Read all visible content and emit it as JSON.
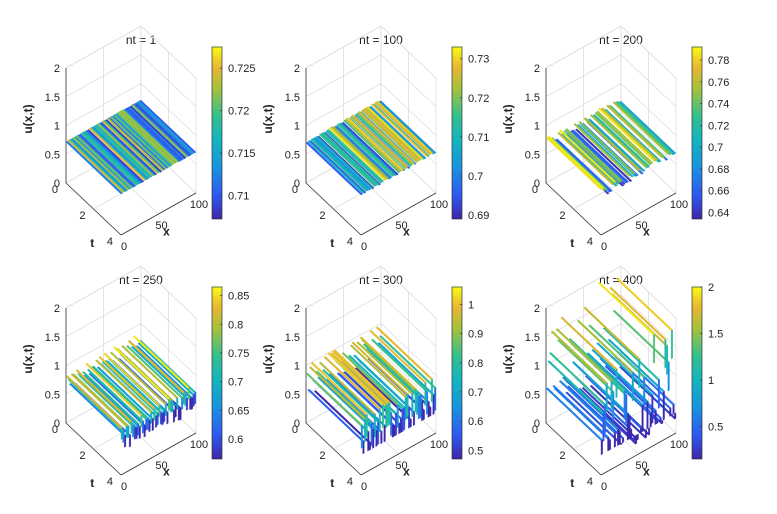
{
  "chart_data": {
    "type": "surface-grid",
    "zlabel": "u(x,t)",
    "xlabel": "x",
    "ylabel": "t",
    "xticks": [
      "0",
      "50",
      "100"
    ],
    "yticks": [
      "0",
      "2",
      "4"
    ],
    "zticks": [
      "0",
      "0.5",
      "1",
      "1.5",
      "2"
    ],
    "zlim": [
      0,
      2
    ],
    "panels": [
      {
        "title": "nt = 1",
        "clim": [
          0.7072,
          0.7275
        ],
        "cticks": [
          "0.71",
          "0.715",
          "0.72",
          "0.725"
        ],
        "mean": 0.717,
        "amp": 0.01,
        "tall_frac": 0.0,
        "tall_max": 0
      },
      {
        "title": "nt = 100",
        "clim": [
          0.689,
          0.733
        ],
        "cticks": [
          "0.69",
          "0.7",
          "0.71",
          "0.72",
          "0.73"
        ],
        "mean": 0.711,
        "amp": 0.02,
        "tall_frac": 0.0,
        "tall_max": 0
      },
      {
        "title": "nt = 200",
        "clim": [
          0.634,
          0.792
        ],
        "cticks": [
          "0.64",
          "0.66",
          "0.68",
          "0.7",
          "0.72",
          "0.74",
          "0.76",
          "0.78"
        ],
        "mean": 0.712,
        "amp": 0.075,
        "tall_frac": 0.0,
        "tall_max": 0
      },
      {
        "title": "nt = 250",
        "clim": [
          0.565,
          0.865
        ],
        "cticks": [
          "0.6",
          "0.65",
          "0.7",
          "0.75",
          "0.8",
          "0.85"
        ],
        "mean": 0.715,
        "amp": 0.14,
        "tall_frac": 0.0,
        "tall_max": 0
      },
      {
        "title": "nt = 300",
        "clim": [
          0.47,
          1.06
        ],
        "cticks": [
          "0.5",
          "0.6",
          "0.7",
          "0.8",
          "0.9",
          "1"
        ],
        "mean": 0.74,
        "amp": 0.28,
        "tall_frac": 0.0,
        "tall_max": 0
      },
      {
        "title": "nt = 400",
        "clim": [
          0.15,
          2.0
        ],
        "cticks": [
          "0.5",
          "1",
          "1.5",
          "2"
        ],
        "mean": 0.55,
        "amp": 0.35,
        "tall_frac": 0.35,
        "tall_max": 2.0
      }
    ]
  }
}
